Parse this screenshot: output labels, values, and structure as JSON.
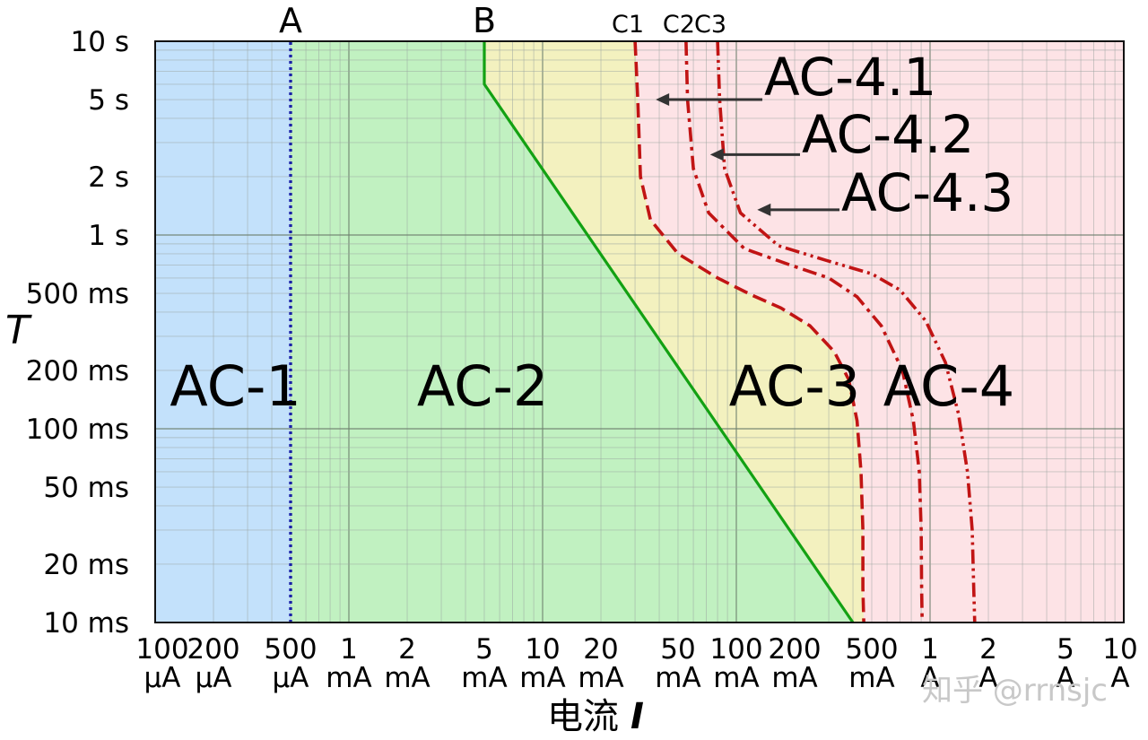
{
  "chart_data": {
    "type": "area",
    "x_scale": "log",
    "y_scale": "log",
    "xlim_mA": [
      0.1,
      10000
    ],
    "ylim_ms": [
      10,
      10000
    ],
    "grid": true,
    "xlabel": "电流",
    "xlabel_symbol": "I",
    "ylabel": "T",
    "x_ticks": [
      {
        "value_mA": 0.1,
        "label": "100",
        "unit": "μA"
      },
      {
        "value_mA": 0.2,
        "label": "200",
        "unit": "μA"
      },
      {
        "value_mA": 0.5,
        "label": "500",
        "unit": "μA"
      },
      {
        "value_mA": 1,
        "label": "1",
        "unit": "mA"
      },
      {
        "value_mA": 2,
        "label": "2",
        "unit": "mA"
      },
      {
        "value_mA": 5,
        "label": "5",
        "unit": "mA"
      },
      {
        "value_mA": 10,
        "label": "10",
        "unit": "mA"
      },
      {
        "value_mA": 20,
        "label": "20",
        "unit": "mA"
      },
      {
        "value_mA": 50,
        "label": "50",
        "unit": "mA"
      },
      {
        "value_mA": 100,
        "label": "100",
        "unit": "mA"
      },
      {
        "value_mA": 200,
        "label": "200",
        "unit": "mA"
      },
      {
        "value_mA": 500,
        "label": "500",
        "unit": "mA"
      },
      {
        "value_mA": 1000,
        "label": "1",
        "unit": "A"
      },
      {
        "value_mA": 2000,
        "label": "2",
        "unit": "A"
      },
      {
        "value_mA": 5000,
        "label": "5",
        "unit": "A"
      },
      {
        "value_mA": 10000,
        "label": "10",
        "unit": "A"
      }
    ],
    "y_ticks": [
      {
        "value_ms": 10000,
        "label": "10 s"
      },
      {
        "value_ms": 5000,
        "label": "5 s"
      },
      {
        "value_ms": 2000,
        "label": "2 s"
      },
      {
        "value_ms": 1000,
        "label": "1 s"
      },
      {
        "value_ms": 500,
        "label": "500 ms"
      },
      {
        "value_ms": 200,
        "label": "200 ms"
      },
      {
        "value_ms": 100,
        "label": "100 ms"
      },
      {
        "value_ms": 50,
        "label": "50 ms"
      },
      {
        "value_ms": 20,
        "label": "20 ms"
      },
      {
        "value_ms": 10,
        "label": "10 ms"
      }
    ],
    "zones": [
      {
        "label": "AC-1",
        "color": "#c3e1fb",
        "label_at": [
          0.26,
          170
        ]
      },
      {
        "label": "AC-2",
        "color": "#c1f1c1",
        "label_at": [
          4.9,
          170
        ]
      },
      {
        "label": "AC-3",
        "color": "#f3f1bf",
        "label_at": [
          200,
          170
        ]
      },
      {
        "label": "AC-4",
        "color": "#fde3e6",
        "label_at": [
          1250,
          170
        ]
      }
    ],
    "boundaries": [
      {
        "label": "A",
        "style": "dotted",
        "color": "#1a22a8",
        "points": [
          [
            0.5,
            10
          ],
          [
            0.5,
            10000
          ]
        ]
      },
      {
        "label": "B",
        "style": "solid",
        "color": "#13a113",
        "points": [
          [
            5,
            10000
          ],
          [
            5,
            6000
          ],
          [
            400,
            10
          ]
        ]
      },
      {
        "label": "C1",
        "style": "dash",
        "color": "#c11414",
        "points": [
          [
            30,
            10000
          ],
          [
            31,
            5000
          ],
          [
            32,
            2000
          ],
          [
            36,
            1200
          ],
          [
            50,
            800
          ],
          [
            80,
            600
          ],
          [
            120,
            490
          ],
          [
            170,
            420
          ],
          [
            240,
            340
          ],
          [
            320,
            250
          ],
          [
            380,
            180
          ],
          [
            420,
            110
          ],
          [
            440,
            60
          ],
          [
            450,
            30
          ],
          [
            450,
            15
          ],
          [
            455,
            10
          ]
        ]
      },
      {
        "label": "C2",
        "style": "dashdot",
        "color": "#c11414",
        "points": [
          [
            55,
            10000
          ],
          [
            56,
            5000
          ],
          [
            60,
            2200
          ],
          [
            72,
            1300
          ],
          [
            110,
            850
          ],
          [
            190,
            700
          ],
          [
            300,
            600
          ],
          [
            420,
            480
          ],
          [
            560,
            340
          ],
          [
            720,
            200
          ],
          [
            820,
            110
          ],
          [
            880,
            60
          ],
          [
            900,
            30
          ],
          [
            905,
            15
          ],
          [
            910,
            10
          ]
        ]
      },
      {
        "label": "C3",
        "style": "dashdotdot",
        "color": "#c11414",
        "points": [
          [
            80,
            10000
          ],
          [
            82,
            5000
          ],
          [
            87,
            2200
          ],
          [
            105,
            1300
          ],
          [
            165,
            880
          ],
          [
            290,
            740
          ],
          [
            500,
            630
          ],
          [
            700,
            520
          ],
          [
            950,
            360
          ],
          [
            1200,
            220
          ],
          [
            1400,
            120
          ],
          [
            1560,
            60
          ],
          [
            1650,
            30
          ],
          [
            1680,
            15
          ],
          [
            1700,
            10
          ]
        ]
      }
    ],
    "curve_labels": [
      {
        "label": "AC-4.1",
        "points_to": "C1"
      },
      {
        "label": "AC-4.2",
        "points_to": "C2"
      },
      {
        "label": "AC-4.3",
        "points_to": "C3"
      }
    ]
  },
  "watermark": "知乎 @rrnsjc"
}
